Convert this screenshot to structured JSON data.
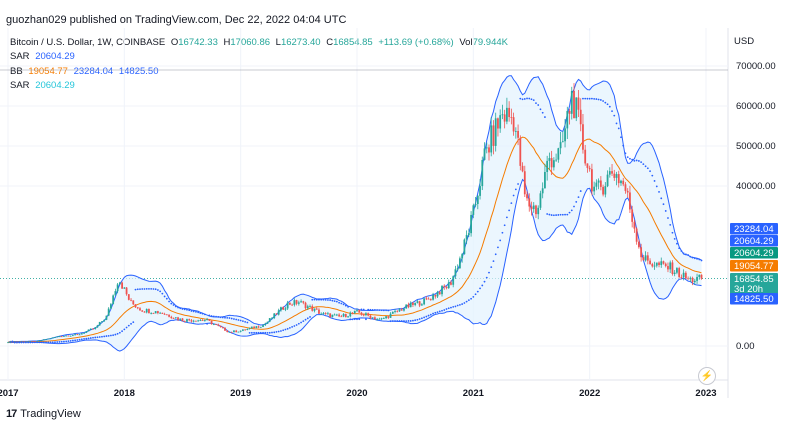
{
  "header": {
    "publisher": "guozhan029 published on TradingView.com, Dec 22, 2022 04:04 UTC"
  },
  "legend": {
    "title": "Bitcoin / U.S. Dollar, 1W, COINBASE",
    "open_label": "O",
    "open": "16742.33",
    "high_label": "H",
    "high": "17060.86",
    "low_label": "L",
    "low": "16273.40",
    "close_label": "C",
    "close": "16854.85",
    "change": "+113.69 (+0.68%)",
    "vol_label": "Vol",
    "vol": "79.944K",
    "sar1_label": "SAR",
    "sar1": "20604.29",
    "bb_label": "BB",
    "bb_basis": "19054.77",
    "bb_upper": "23284.04",
    "bb_lower": "14825.50",
    "sar2_label": "SAR",
    "sar2": "20604.29"
  },
  "price_axis": {
    "currency": "USD",
    "ticks": [
      "70000.00",
      "60000.00",
      "50000.00",
      "40000.00",
      "0.00"
    ]
  },
  "price_tags": [
    {
      "text": "23284.04",
      "color": "#2962ff"
    },
    {
      "text": "20604.29",
      "color": "#2962ff"
    },
    {
      "text": "20604.29",
      "color": "#089981"
    },
    {
      "text": "19054.77",
      "color": "#f57c00"
    },
    {
      "text": "16854.85",
      "color": "#26a69a"
    },
    {
      "text": "3d 20h",
      "color": "#26a69a"
    },
    {
      "text": "14825.50",
      "color": "#2962ff"
    }
  ],
  "time_axis": {
    "ticks": [
      "2017",
      "2018",
      "2019",
      "2020",
      "2021",
      "2022",
      "2023"
    ]
  },
  "footer": {
    "brand": "TradingView",
    "logo": "17"
  },
  "icons": {
    "flash": "lightning-icon"
  },
  "colors": {
    "up": "#26a69a",
    "down": "#ef5350",
    "bb_band": "#2962ff",
    "bb_basis": "#f57c00",
    "sar": "#2962ff",
    "bb_fill": "#e3f2fd"
  },
  "chart_data": {
    "type": "candlestick",
    "title": "Bitcoin / U.S. Dollar, 1W, COINBASE",
    "ylabel": "USD",
    "ylim": [
      -8000,
      72000
    ],
    "xlim": [
      2017.0,
      2023.0
    ],
    "x_ticks": [
      2017,
      2018,
      2019,
      2020,
      2021,
      2022,
      2023
    ],
    "y_ticks": [
      0,
      40000,
      50000,
      60000,
      70000
    ],
    "price_series": {
      "x": [
        2017.0,
        2017.25,
        2017.45,
        2017.6,
        2017.75,
        2017.85,
        2017.95,
        2018.05,
        2018.15,
        2018.3,
        2018.5,
        2018.7,
        2018.9,
        2019.0,
        2019.2,
        2019.4,
        2019.5,
        2019.7,
        2019.85,
        2020.0,
        2020.2,
        2020.4,
        2020.6,
        2020.8,
        2020.9,
        2021.0,
        2021.1,
        2021.25,
        2021.35,
        2021.45,
        2021.55,
        2021.65,
        2021.75,
        2021.85,
        2021.95,
        2022.05,
        2022.2,
        2022.3,
        2022.45,
        2022.55,
        2022.7,
        2022.85,
        2022.97
      ],
      "close": [
        1000,
        1200,
        2500,
        2800,
        4500,
        7500,
        17000,
        11000,
        9000,
        8500,
        6500,
        6500,
        3500,
        3800,
        5300,
        10500,
        11000,
        8000,
        7300,
        8500,
        6500,
        9500,
        11500,
        15500,
        23000,
        33000,
        48000,
        58000,
        57000,
        36000,
        34000,
        47000,
        48000,
        63000,
        49000,
        38000,
        44000,
        40000,
        22000,
        20500,
        19500,
        16500,
        16854.85
      ]
    },
    "bollinger": {
      "basis": 19054.77,
      "upper": 23284.04,
      "lower": 14825.5
    },
    "sar": 20604.29,
    "last": {
      "open": 16742.33,
      "high": 17060.86,
      "low": 16273.4,
      "close": 16854.85
    }
  }
}
